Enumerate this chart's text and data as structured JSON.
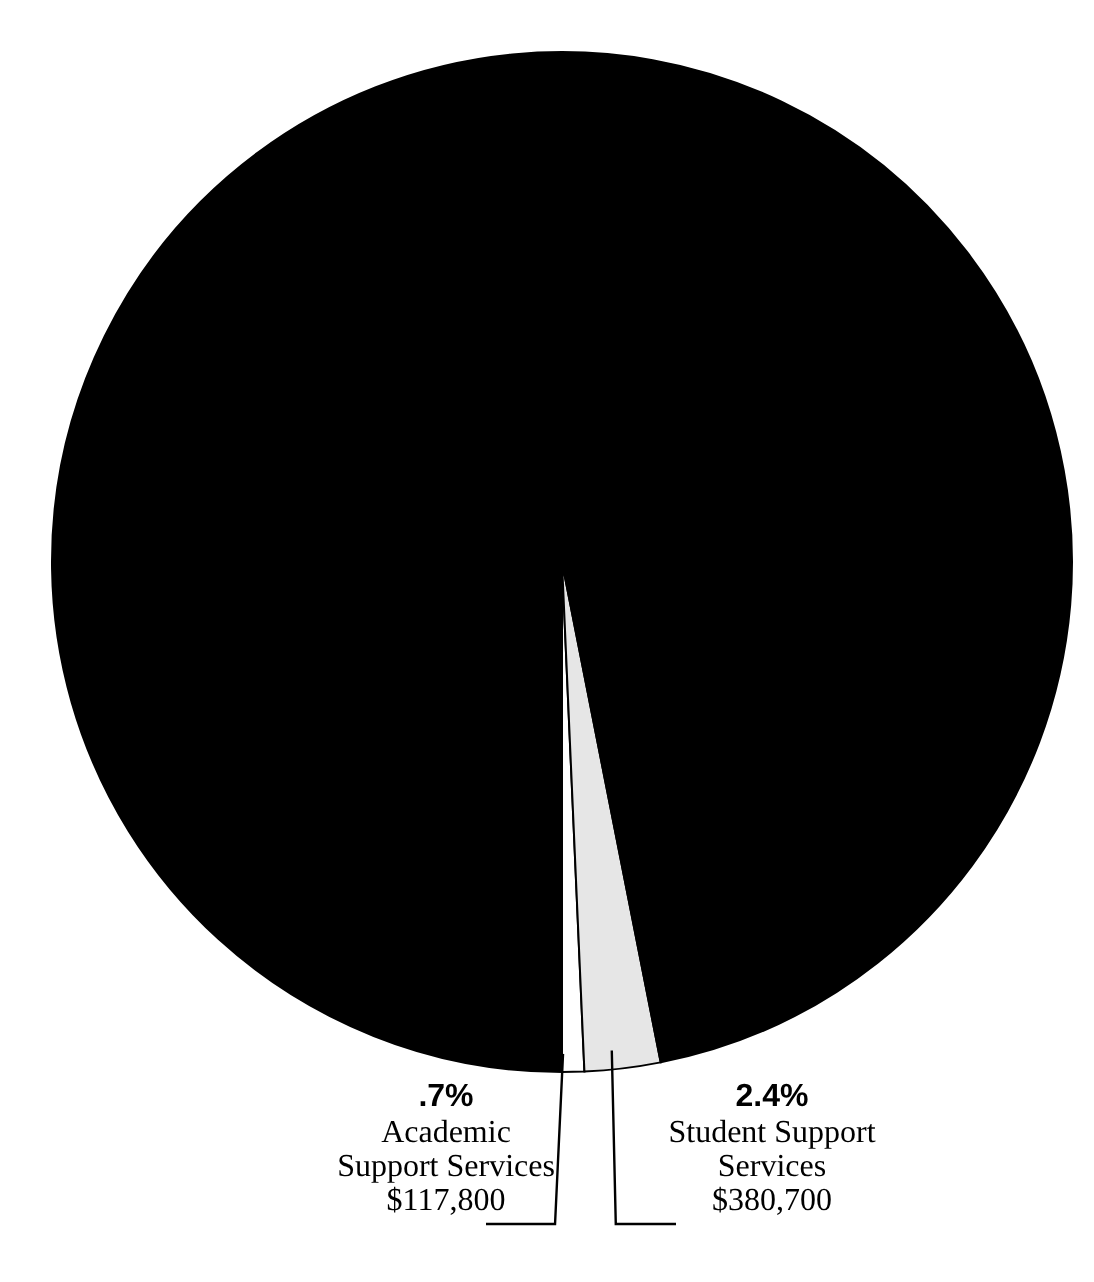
{
  "chart_data": {
    "type": "pie",
    "categories": [
      "Academic Support Services",
      "Student Support Services",
      null
    ],
    "values": [
      0.7,
      2.4,
      96.9
    ],
    "colors": [
      "#ffffff",
      "#e6e6e6",
      "#000000"
    ],
    "value_labels": [
      ".7%",
      "2.4%",
      null
    ],
    "annotations": [
      "$117,800",
      "$380,700"
    ]
  }
}
